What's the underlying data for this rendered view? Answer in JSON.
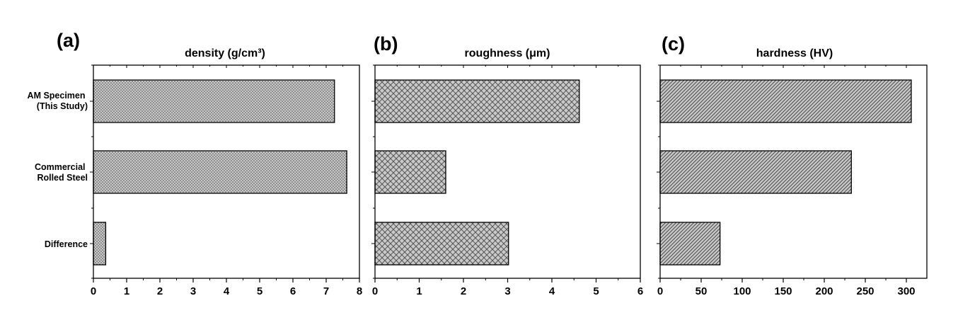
{
  "categories": [
    [
      "AM Specimen",
      "(This Study)"
    ],
    [
      "Commercial",
      "Rolled Steel"
    ],
    [
      "Difference"
    ]
  ],
  "chart_data": [
    {
      "type": "bar",
      "orientation": "horizontal",
      "panel_label": "(a)",
      "title": "density (g/cm³)",
      "categories": [
        "AM Specimen (This Study)",
        "Commercial Rolled Steel",
        "Difference"
      ],
      "values": [
        7.25,
        7.62,
        0.37
      ],
      "xlim": [
        0,
        8
      ],
      "xticks": [
        0,
        1,
        2,
        3,
        4,
        5,
        6,
        7,
        8
      ],
      "fill_pattern": "dots",
      "grid": false
    },
    {
      "type": "bar",
      "orientation": "horizontal",
      "panel_label": "(b)",
      "title": "roughness (μm)",
      "categories": [
        "AM Specimen (This Study)",
        "Commercial Rolled Steel",
        "Difference"
      ],
      "values": [
        4.62,
        1.6,
        3.02
      ],
      "xlim": [
        0,
        6
      ],
      "xticks": [
        0,
        1,
        2,
        3,
        4,
        5,
        6
      ],
      "fill_pattern": "crosshatch",
      "grid": false
    },
    {
      "type": "bar",
      "orientation": "horizontal",
      "panel_label": "(c)",
      "title": "hardness (HV)",
      "categories": [
        "AM Specimen (This Study)",
        "Commercial Rolled Steel",
        "Difference"
      ],
      "values": [
        306,
        233,
        73
      ],
      "xlim": [
        0,
        325
      ],
      "xticks": [
        0,
        50,
        100,
        150,
        200,
        250,
        300
      ],
      "fill_pattern": "diagonal",
      "grid": false
    }
  ],
  "colors": {
    "bar_fill": "#c8c8c8",
    "pattern_ink": "#4a4a4a",
    "axis": "#000000"
  }
}
